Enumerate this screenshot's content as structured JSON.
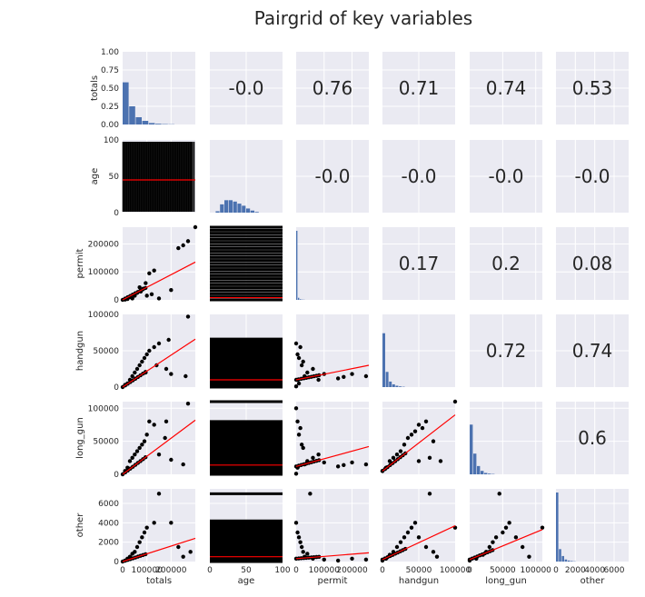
{
  "chart_data": {
    "type": "pairgrid",
    "title": "Pairgrid of key variables",
    "variables": [
      "totals",
      "age",
      "permit",
      "handgun",
      "long_gun",
      "other"
    ],
    "colors": {
      "panel_bg": "#eaeaf2",
      "grid": "#ffffff",
      "hist": "#4c72b0",
      "points": "#000000",
      "regression": "#ff0000"
    },
    "axes": {
      "totals": {
        "lim": [
          0,
          300000
        ],
        "ticks": [
          0,
          100000,
          200000
        ],
        "tick_labels": [
          "0",
          "100000",
          "200000"
        ]
      },
      "age": {
        "lim": [
          0,
          100
        ],
        "ticks": [
          0,
          50,
          100
        ],
        "tick_labels": [
          "0",
          "50",
          "100"
        ]
      },
      "permit": {
        "lim": [
          0,
          260000
        ],
        "ticks": [
          0,
          100000,
          200000
        ],
        "tick_labels": [
          "0",
          "100000",
          "200000"
        ]
      },
      "handgun": {
        "lim": [
          0,
          100000
        ],
        "ticks": [
          0,
          50000,
          100000
        ],
        "tick_labels": [
          "0",
          "50000",
          "100000"
        ]
      },
      "long_gun": {
        "lim": [
          0,
          110000
        ],
        "ticks": [
          0,
          50000,
          100000
        ],
        "tick_labels": [
          "0",
          "50000",
          "100000"
        ]
      },
      "other": {
        "lim": [
          0,
          7500
        ],
        "ticks": [
          0,
          2000,
          4000,
          6000
        ],
        "tick_labels": [
          "0",
          "2000",
          "4000",
          "6000"
        ]
      }
    },
    "top_left_ylim": [
      0,
      1
    ],
    "top_left_yticks": [
      "0.00",
      "0.25",
      "0.50",
      "0.75",
      "1.00"
    ],
    "histograms": {
      "totals": [
        0.58,
        0.25,
        0.1,
        0.05,
        0.02,
        0.01,
        0.005,
        0.003,
        0.002,
        0.001
      ],
      "age": [
        0.02,
        0.12,
        0.18,
        0.18,
        0.16,
        0.13,
        0.1,
        0.06,
        0.03,
        0.01
      ],
      "permit": [
        1.0,
        0.03,
        0.01,
        0.005,
        0.003,
        0.002,
        0.001,
        0.001,
        0.0,
        0.0
      ],
      "handgun": [
        0.78,
        0.22,
        0.08,
        0.04,
        0.02,
        0.01,
        0.005,
        0.002,
        0.001,
        0.001
      ],
      "long_gun": [
        0.72,
        0.3,
        0.12,
        0.05,
        0.02,
        0.01,
        0.005,
        0.002,
        0.001,
        0.001
      ],
      "other": [
        1.0,
        0.18,
        0.08,
        0.03,
        0.015,
        0.008,
        0.004,
        0.002,
        0.001,
        0.001
      ]
    },
    "correlations": [
      {
        "row": 0,
        "col": 1,
        "value": "-0.0"
      },
      {
        "row": 0,
        "col": 2,
        "value": "0.76"
      },
      {
        "row": 0,
        "col": 3,
        "value": "0.71"
      },
      {
        "row": 0,
        "col": 4,
        "value": "0.74"
      },
      {
        "row": 0,
        "col": 5,
        "value": "0.53"
      },
      {
        "row": 1,
        "col": 2,
        "value": "-0.0"
      },
      {
        "row": 1,
        "col": 3,
        "value": "-0.0"
      },
      {
        "row": 1,
        "col": 4,
        "value": "-0.0"
      },
      {
        "row": 1,
        "col": 5,
        "value": "-0.0"
      },
      {
        "row": 2,
        "col": 3,
        "value": "0.17"
      },
      {
        "row": 2,
        "col": 4,
        "value": "0.2"
      },
      {
        "row": 2,
        "col": 5,
        "value": "0.08"
      },
      {
        "row": 3,
        "col": 4,
        "value": "0.72"
      },
      {
        "row": 3,
        "col": 5,
        "value": "0.74"
      },
      {
        "row": 4,
        "col": 5,
        "value": "0.6"
      }
    ],
    "scatter_panels": [
      {
        "row": 1,
        "col": 0,
        "style": "age_band",
        "regression": [
          [
            0,
            45
          ],
          [
            300000,
            45
          ]
        ],
        "points": []
      },
      {
        "row": 2,
        "col": 0,
        "style": "points",
        "regression": [
          [
            0,
            0
          ],
          [
            300000,
            135000
          ]
        ],
        "points": [
          [
            300000,
            260000
          ],
          [
            270000,
            210000
          ],
          [
            250000,
            195000
          ],
          [
            230000,
            185000
          ],
          [
            200000,
            35000
          ],
          [
            130000,
            105000
          ],
          [
            110000,
            95000
          ],
          [
            95000,
            60000
          ],
          [
            85000,
            40000
          ],
          [
            75000,
            30000
          ],
          [
            60000,
            25000
          ],
          [
            50000,
            15000
          ],
          [
            40000,
            5000
          ],
          [
            30000,
            10000
          ],
          [
            20000,
            3000
          ],
          [
            10000,
            1000
          ],
          [
            120000,
            20000
          ],
          [
            150000,
            5000
          ],
          [
            70000,
            45000
          ],
          [
            100000,
            15000
          ]
        ]
      },
      {
        "row": 3,
        "col": 0,
        "style": "points",
        "regression": [
          [
            0,
            0
          ],
          [
            300000,
            66000
          ]
        ],
        "points": [
          [
            270000,
            97000
          ],
          [
            190000,
            65000
          ],
          [
            150000,
            60000
          ],
          [
            130000,
            55000
          ],
          [
            110000,
            50000
          ],
          [
            100000,
            45000
          ],
          [
            90000,
            40000
          ],
          [
            80000,
            35000
          ],
          [
            70000,
            30000
          ],
          [
            60000,
            25000
          ],
          [
            50000,
            20000
          ],
          [
            40000,
            15000
          ],
          [
            30000,
            10000
          ],
          [
            20000,
            5000
          ],
          [
            10000,
            3000
          ],
          [
            180000,
            25000
          ],
          [
            200000,
            18000
          ],
          [
            260000,
            15000
          ],
          [
            140000,
            30000
          ],
          [
            95000,
            20000
          ]
        ]
      },
      {
        "row": 4,
        "col": 0,
        "style": "points",
        "regression": [
          [
            0,
            0
          ],
          [
            300000,
            82000
          ]
        ],
        "points": [
          [
            270000,
            107000
          ],
          [
            180000,
            80000
          ],
          [
            130000,
            75000
          ],
          [
            110000,
            80000
          ],
          [
            100000,
            60000
          ],
          [
            90000,
            50000
          ],
          [
            80000,
            45000
          ],
          [
            70000,
            40000
          ],
          [
            60000,
            35000
          ],
          [
            50000,
            30000
          ],
          [
            40000,
            25000
          ],
          [
            30000,
            20000
          ],
          [
            20000,
            10000
          ],
          [
            10000,
            5000
          ],
          [
            200000,
            22000
          ],
          [
            250000,
            15000
          ],
          [
            150000,
            30000
          ],
          [
            175000,
            55000
          ]
        ]
      },
      {
        "row": 5,
        "col": 0,
        "style": "points",
        "regression": [
          [
            0,
            0
          ],
          [
            300000,
            2400
          ]
        ],
        "points": [
          [
            150000,
            7000
          ],
          [
            130000,
            4000
          ],
          [
            100000,
            3500
          ],
          [
            90000,
            3000
          ],
          [
            80000,
            2500
          ],
          [
            70000,
            2000
          ],
          [
            60000,
            1500
          ],
          [
            50000,
            1000
          ],
          [
            40000,
            800
          ],
          [
            30000,
            500
          ],
          [
            20000,
            300
          ],
          [
            10000,
            100
          ],
          [
            200000,
            4000
          ],
          [
            230000,
            1500
          ],
          [
            280000,
            1000
          ],
          [
            250000,
            500
          ]
        ]
      },
      {
        "row": 2,
        "col": 1,
        "style": "age_band",
        "regression": [
          [
            0,
            8000
          ],
          [
            100,
            8000
          ]
        ],
        "points": []
      },
      {
        "row": 3,
        "col": 1,
        "style": "age_band",
        "regression": [
          [
            0,
            10000
          ],
          [
            100,
            10000
          ]
        ],
        "points": []
      },
      {
        "row": 4,
        "col": 1,
        "style": "age_band",
        "regression": [
          [
            0,
            14000
          ],
          [
            100,
            14000
          ]
        ],
        "points": []
      },
      {
        "row": 5,
        "col": 1,
        "style": "age_band",
        "regression": [
          [
            0,
            500
          ],
          [
            100,
            500
          ]
        ],
        "points": []
      },
      {
        "row": 3,
        "col": 2,
        "style": "points",
        "regression": [
          [
            0,
            10000
          ],
          [
            260000,
            30000
          ]
        ],
        "points": [
          [
            200000,
            18000
          ],
          [
            250000,
            15000
          ],
          [
            170000,
            14000
          ],
          [
            150000,
            12000
          ],
          [
            100000,
            18000
          ],
          [
            80000,
            10000
          ],
          [
            60000,
            25000
          ],
          [
            40000,
            20000
          ],
          [
            20000,
            30000
          ],
          [
            10000,
            40000
          ],
          [
            5000,
            45000
          ],
          [
            0,
            60000
          ],
          [
            15000,
            55000
          ],
          [
            25000,
            35000
          ],
          [
            30000,
            15000
          ],
          [
            5000,
            10000
          ],
          [
            10000,
            5000
          ],
          [
            0,
            1000
          ]
        ]
      },
      {
        "row": 4,
        "col": 2,
        "style": "points",
        "regression": [
          [
            0,
            12000
          ],
          [
            260000,
            42000
          ]
        ],
        "points": [
          [
            200000,
            18000
          ],
          [
            250000,
            15000
          ],
          [
            170000,
            14000
          ],
          [
            150000,
            12000
          ],
          [
            100000,
            18000
          ],
          [
            80000,
            30000
          ],
          [
            60000,
            25000
          ],
          [
            40000,
            20000
          ],
          [
            20000,
            45000
          ],
          [
            10000,
            60000
          ],
          [
            5000,
            80000
          ],
          [
            0,
            100000
          ],
          [
            15000,
            70000
          ],
          [
            25000,
            40000
          ],
          [
            30000,
            15000
          ],
          [
            5000,
            10000
          ],
          [
            0,
            1000
          ]
        ]
      },
      {
        "row": 5,
        "col": 2,
        "style": "points",
        "regression": [
          [
            0,
            300
          ],
          [
            260000,
            900
          ]
        ],
        "points": [
          [
            50000,
            7000
          ],
          [
            0,
            4000
          ],
          [
            5000,
            3000
          ],
          [
            10000,
            2500
          ],
          [
            15000,
            2000
          ],
          [
            20000,
            1500
          ],
          [
            25000,
            1000
          ],
          [
            30000,
            500
          ],
          [
            40000,
            800
          ],
          [
            60000,
            300
          ],
          [
            100000,
            200
          ],
          [
            150000,
            100
          ],
          [
            200000,
            300
          ],
          [
            250000,
            200
          ]
        ]
      },
      {
        "row": 4,
        "col": 3,
        "style": "points",
        "regression": [
          [
            0,
            5000
          ],
          [
            100000,
            90000
          ]
        ],
        "points": [
          [
            100000,
            110000
          ],
          [
            60000,
            80000
          ],
          [
            50000,
            75000
          ],
          [
            40000,
            60000
          ],
          [
            35000,
            55000
          ],
          [
            30000,
            45000
          ],
          [
            25000,
            35000
          ],
          [
            20000,
            30000
          ],
          [
            15000,
            25000
          ],
          [
            10000,
            20000
          ],
          [
            5000,
            10000
          ],
          [
            0,
            5000
          ],
          [
            45000,
            65000
          ],
          [
            55000,
            70000
          ],
          [
            70000,
            50000
          ],
          [
            80000,
            20000
          ],
          [
            65000,
            25000
          ],
          [
            50000,
            20000
          ]
        ]
      },
      {
        "row": 5,
        "col": 3,
        "style": "points",
        "regression": [
          [
            0,
            200
          ],
          [
            100000,
            3700
          ]
        ],
        "points": [
          [
            65000,
            7000
          ],
          [
            45000,
            4000
          ],
          [
            40000,
            3500
          ],
          [
            35000,
            3000
          ],
          [
            30000,
            2500
          ],
          [
            25000,
            2000
          ],
          [
            20000,
            1500
          ],
          [
            15000,
            1000
          ],
          [
            10000,
            700
          ],
          [
            5000,
            300
          ],
          [
            0,
            100
          ],
          [
            50000,
            2500
          ],
          [
            60000,
            1500
          ],
          [
            70000,
            1000
          ],
          [
            75000,
            500
          ],
          [
            100000,
            3500
          ]
        ]
      },
      {
        "row": 5,
        "col": 4,
        "style": "points",
        "regression": [
          [
            0,
            200
          ],
          [
            110000,
            3300
          ]
        ],
        "points": [
          [
            45000,
            7000
          ],
          [
            60000,
            4000
          ],
          [
            55000,
            3500
          ],
          [
            50000,
            3000
          ],
          [
            40000,
            2500
          ],
          [
            35000,
            2000
          ],
          [
            30000,
            1500
          ],
          [
            25000,
            1000
          ],
          [
            20000,
            700
          ],
          [
            10000,
            300
          ],
          [
            0,
            100
          ],
          [
            70000,
            2500
          ],
          [
            80000,
            1500
          ],
          [
            90000,
            500
          ],
          [
            110000,
            3500
          ]
        ]
      }
    ]
  }
}
